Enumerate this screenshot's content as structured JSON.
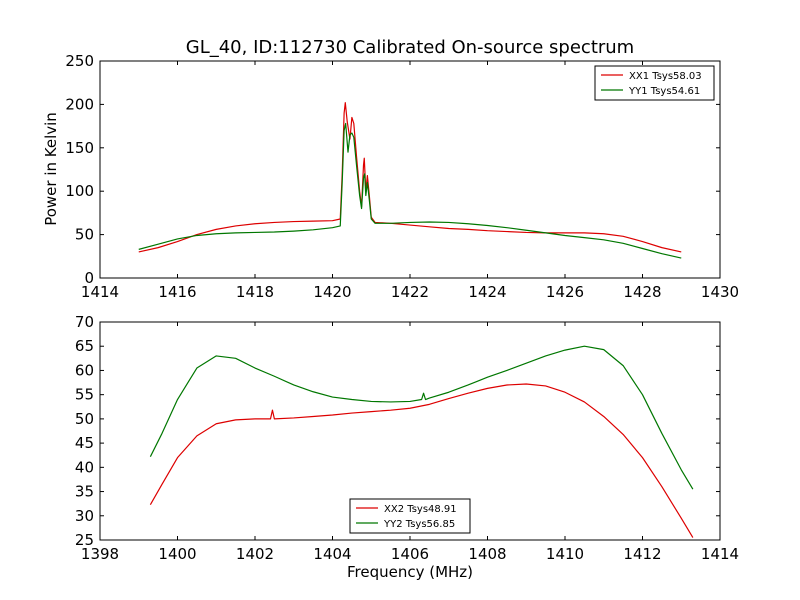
{
  "title": "GL_40, ID:112730 Calibrated On-source spectrum",
  "colors": {
    "red": "#dd0000",
    "green": "#007700"
  },
  "chart_data": [
    {
      "type": "line",
      "ylabel": "Power in Kelvin",
      "xlabel": "",
      "xlim": [
        1414,
        1430
      ],
      "ylim": [
        0,
        250
      ],
      "xticks": [
        1414,
        1416,
        1418,
        1420,
        1422,
        1424,
        1426,
        1428,
        1430
      ],
      "yticks": [
        0,
        50,
        100,
        150,
        200,
        250
      ],
      "legend_position": "top-right",
      "series": [
        {
          "name": "XX1 Tsys58.03",
          "color": "#dd0000",
          "points": [
            [
              1415.0,
              30
            ],
            [
              1415.5,
              35
            ],
            [
              1416.0,
              42
            ],
            [
              1416.5,
              50
            ],
            [
              1417.0,
              56
            ],
            [
              1417.5,
              60
            ],
            [
              1418.0,
              62.5
            ],
            [
              1418.5,
              64
            ],
            [
              1419.0,
              65
            ],
            [
              1419.5,
              65.5
            ],
            [
              1420.0,
              66
            ],
            [
              1420.2,
              68
            ],
            [
              1420.25,
              120
            ],
            [
              1420.3,
              190
            ],
            [
              1420.33,
              202
            ],
            [
              1420.38,
              180
            ],
            [
              1420.45,
              160
            ],
            [
              1420.5,
              185
            ],
            [
              1420.55,
              178
            ],
            [
              1420.62,
              140
            ],
            [
              1420.7,
              100
            ],
            [
              1420.75,
              82
            ],
            [
              1420.8,
              130
            ],
            [
              1420.82,
              138
            ],
            [
              1420.86,
              100
            ],
            [
              1420.9,
              118
            ],
            [
              1420.95,
              95
            ],
            [
              1421.0,
              70
            ],
            [
              1421.1,
              64
            ],
            [
              1421.5,
              63
            ],
            [
              1422.0,
              61
            ],
            [
              1422.5,
              59
            ],
            [
              1423.0,
              57
            ],
            [
              1423.5,
              56
            ],
            [
              1424.0,
              54.5
            ],
            [
              1424.5,
              53.5
            ],
            [
              1425.0,
              52.5
            ],
            [
              1425.5,
              52
            ],
            [
              1426.0,
              52
            ],
            [
              1426.5,
              52
            ],
            [
              1427.0,
              51
            ],
            [
              1427.5,
              48
            ],
            [
              1428.0,
              42
            ],
            [
              1428.5,
              35
            ],
            [
              1429.0,
              30
            ]
          ]
        },
        {
          "name": "YY1 Tsys54.61",
          "color": "#007700",
          "points": [
            [
              1415.0,
              33
            ],
            [
              1415.5,
              39
            ],
            [
              1416.0,
              45
            ],
            [
              1416.5,
              49
            ],
            [
              1417.0,
              51
            ],
            [
              1417.5,
              52
            ],
            [
              1418.0,
              52.5
            ],
            [
              1418.5,
              53
            ],
            [
              1419.0,
              54
            ],
            [
              1419.5,
              55.5
            ],
            [
              1420.0,
              58
            ],
            [
              1420.2,
              60
            ],
            [
              1420.25,
              110
            ],
            [
              1420.3,
              170
            ],
            [
              1420.34,
              178
            ],
            [
              1420.4,
              145
            ],
            [
              1420.45,
              165
            ],
            [
              1420.5,
              167
            ],
            [
              1420.55,
              162
            ],
            [
              1420.62,
              130
            ],
            [
              1420.7,
              95
            ],
            [
              1420.75,
              80
            ],
            [
              1420.8,
              115
            ],
            [
              1420.83,
              120
            ],
            [
              1420.86,
              95
            ],
            [
              1420.9,
              110
            ],
            [
              1420.95,
              90
            ],
            [
              1421.0,
              68
            ],
            [
              1421.1,
              63
            ],
            [
              1421.5,
              63
            ],
            [
              1422.0,
              64
            ],
            [
              1422.5,
              64.5
            ],
            [
              1423.0,
              64
            ],
            [
              1423.5,
              62.5
            ],
            [
              1424.0,
              60.5
            ],
            [
              1424.5,
              58
            ],
            [
              1425.0,
              55
            ],
            [
              1425.5,
              52
            ],
            [
              1426.0,
              49
            ],
            [
              1426.5,
              46.5
            ],
            [
              1427.0,
              44
            ],
            [
              1427.5,
              40
            ],
            [
              1428.0,
              34
            ],
            [
              1428.5,
              28
            ],
            [
              1429.0,
              23
            ]
          ]
        }
      ]
    },
    {
      "type": "line",
      "ylabel": "",
      "xlabel": "Frequency (MHz)",
      "xlim": [
        1398,
        1414
      ],
      "ylim": [
        25,
        70
      ],
      "xticks": [
        1398,
        1400,
        1402,
        1404,
        1406,
        1408,
        1410,
        1412,
        1414
      ],
      "yticks": [
        25,
        30,
        35,
        40,
        45,
        50,
        55,
        60,
        65,
        70
      ],
      "legend_position": "bottom-center",
      "series": [
        {
          "name": "XX2 Tsys48.91",
          "color": "#dd0000",
          "points": [
            [
              1399.3,
              32.3
            ],
            [
              1399.6,
              36.5
            ],
            [
              1400.0,
              42
            ],
            [
              1400.5,
              46.5
            ],
            [
              1401.0,
              49
            ],
            [
              1401.5,
              49.8
            ],
            [
              1402.0,
              50.0
            ],
            [
              1402.4,
              50.0
            ],
            [
              1402.45,
              51.8
            ],
            [
              1402.5,
              50.0
            ],
            [
              1403.0,
              50.2
            ],
            [
              1403.5,
              50.5
            ],
            [
              1404.0,
              50.8
            ],
            [
              1404.5,
              51.2
            ],
            [
              1405.0,
              51.5
            ],
            [
              1405.5,
              51.8
            ],
            [
              1406.0,
              52.2
            ],
            [
              1406.5,
              53
            ],
            [
              1407.0,
              54.2
            ],
            [
              1407.5,
              55.3
            ],
            [
              1408.0,
              56.3
            ],
            [
              1408.5,
              57
            ],
            [
              1409.0,
              57.2
            ],
            [
              1409.5,
              56.8
            ],
            [
              1410.0,
              55.5
            ],
            [
              1410.5,
              53.5
            ],
            [
              1411.0,
              50.5
            ],
            [
              1411.5,
              46.8
            ],
            [
              1412.0,
              42
            ],
            [
              1412.5,
              36
            ],
            [
              1413.0,
              29.5
            ],
            [
              1413.3,
              25.5
            ]
          ]
        },
        {
          "name": "YY2 Tsys56.85",
          "color": "#007700",
          "points": [
            [
              1399.3,
              42.2
            ],
            [
              1399.6,
              47
            ],
            [
              1400.0,
              54
            ],
            [
              1400.5,
              60.5
            ],
            [
              1401.0,
              63
            ],
            [
              1401.5,
              62.5
            ],
            [
              1402.0,
              60.5
            ],
            [
              1402.5,
              58.8
            ],
            [
              1403.0,
              57
            ],
            [
              1403.5,
              55.6
            ],
            [
              1404.0,
              54.5
            ],
            [
              1404.5,
              54
            ],
            [
              1405.0,
              53.6
            ],
            [
              1405.5,
              53.5
            ],
            [
              1406.0,
              53.6
            ],
            [
              1406.3,
              54
            ],
            [
              1406.35,
              55.3
            ],
            [
              1406.4,
              54
            ],
            [
              1406.5,
              54.3
            ],
            [
              1407.0,
              55.5
            ],
            [
              1407.5,
              57
            ],
            [
              1408.0,
              58.6
            ],
            [
              1408.5,
              60
            ],
            [
              1409.0,
              61.5
            ],
            [
              1409.5,
              63
            ],
            [
              1410.0,
              64.2
            ],
            [
              1410.5,
              65
            ],
            [
              1411.0,
              64.3
            ],
            [
              1411.5,
              61
            ],
            [
              1412.0,
              55
            ],
            [
              1412.5,
              47
            ],
            [
              1413.0,
              39.5
            ],
            [
              1413.3,
              35.5
            ]
          ]
        }
      ]
    }
  ]
}
